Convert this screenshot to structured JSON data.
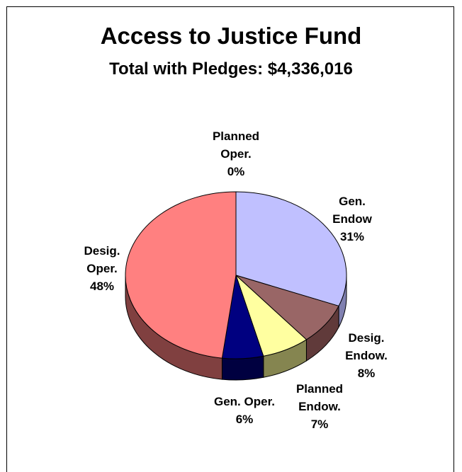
{
  "chart_data": {
    "type": "pie",
    "title": "Access to Justice Fund",
    "subtitle": "Total with Pledges: $4,336,016",
    "slices": [
      {
        "key": "gen-endow",
        "label_lines": [
          "Gen.",
          "Endow"
        ],
        "percent_text": "31%",
        "value": 31,
        "color": "#c0c0ff",
        "side_color": "#8080b0"
      },
      {
        "key": "desig-endow",
        "label_lines": [
          "Desig.",
          "Endow."
        ],
        "percent_text": "8%",
        "value": 8,
        "color": "#996666",
        "side_color": "#603a3a"
      },
      {
        "key": "planned-endow",
        "label_lines": [
          "Planned",
          "Endow."
        ],
        "percent_text": "7%",
        "value": 7,
        "color": "#ffffa0",
        "side_color": "#858550"
      },
      {
        "key": "gen-oper",
        "label_lines": [
          "Gen. Oper."
        ],
        "percent_text": "6%",
        "value": 6,
        "color": "#000080",
        "side_color": "#000040"
      },
      {
        "key": "desig-oper",
        "label_lines": [
          "Desig.",
          "Oper."
        ],
        "percent_text": "48%",
        "value": 48,
        "color": "#ff8080",
        "side_color": "#804040"
      },
      {
        "key": "planned-oper",
        "label_lines": [
          "Planned",
          "Oper."
        ],
        "percent_text": "0%",
        "value": 0,
        "color": "#ccffff",
        "side_color": "#668080"
      }
    ]
  }
}
